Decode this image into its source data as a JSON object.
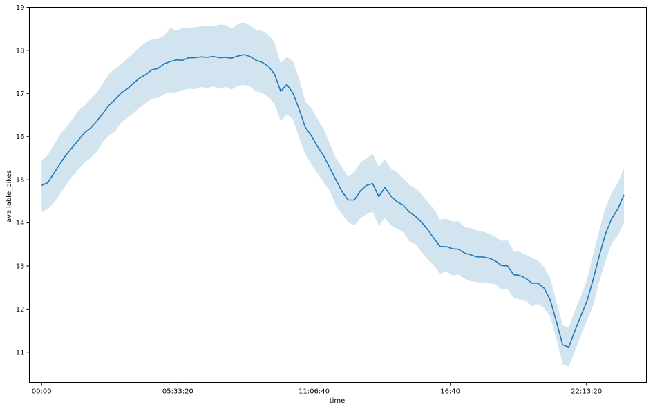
{
  "chart_data": {
    "type": "line",
    "xlabel": "time",
    "ylabel": "available_bikes",
    "xlim": [
      "-00:30",
      "24:40"
    ],
    "ylim": [
      10.3,
      19.0
    ],
    "x_ticks": [
      {
        "value": "00:00",
        "label": "00:00"
      },
      {
        "value": "05:33:20",
        "label": "05:33:20"
      },
      {
        "value": "11:06:40",
        "label": "11:06:40"
      },
      {
        "value": "16:40",
        "label": "16:40"
      },
      {
        "value": "22:13:20",
        "label": "22:13:20"
      }
    ],
    "y_ticks": [
      11,
      12,
      13,
      14,
      15,
      16,
      17,
      18,
      19
    ],
    "grid": false,
    "line_color": "#1f77b4",
    "band_color": "#1f77b4",
    "series": [
      {
        "x": [
          "00:00",
          "00:15",
          "00:30",
          "00:45",
          "01:00",
          "01:15",
          "01:30",
          "01:45",
          "02:00",
          "02:15",
          "02:30",
          "02:45",
          "03:00",
          "03:15",
          "03:30",
          "03:45",
          "04:00",
          "04:15",
          "04:30",
          "04:45",
          "05:00",
          "05:15",
          "05:30",
          "05:45",
          "06:00",
          "06:15",
          "06:30",
          "06:45",
          "07:00",
          "07:15",
          "07:30",
          "07:45",
          "08:00",
          "08:15",
          "08:30",
          "08:45",
          "09:00",
          "09:15",
          "09:30",
          "09:45",
          "10:00",
          "10:15",
          "10:30",
          "10:45",
          "11:00",
          "11:15",
          "11:30",
          "11:45",
          "12:00",
          "12:15",
          "12:30",
          "12:45",
          "13:00",
          "13:15",
          "13:30",
          "13:45",
          "14:00",
          "14:15",
          "14:30",
          "14:45",
          "15:00",
          "15:15",
          "15:30",
          "15:45",
          "16:00",
          "16:15",
          "16:30",
          "16:45",
          "17:00",
          "17:15",
          "17:30",
          "17:45",
          "18:00",
          "18:15",
          "18:30",
          "18:45",
          "19:00",
          "19:15",
          "19:30",
          "19:45",
          "20:00",
          "20:15",
          "20:30",
          "20:45",
          "21:00",
          "21:15",
          "21:30",
          "21:45",
          "22:00",
          "22:15",
          "22:30",
          "22:45",
          "23:00",
          "23:15",
          "23:30",
          "23:45"
        ],
        "y": [
          14.87,
          14.93,
          15.15,
          15.37,
          15.58,
          15.75,
          15.92,
          16.09,
          16.2,
          16.36,
          16.54,
          16.73,
          16.86,
          17.02,
          17.11,
          17.24,
          17.36,
          17.44,
          17.55,
          17.58,
          17.69,
          17.74,
          17.78,
          17.77,
          17.83,
          17.83,
          17.85,
          17.84,
          17.86,
          17.83,
          17.84,
          17.82,
          17.87,
          17.9,
          17.86,
          17.77,
          17.72,
          17.63,
          17.45,
          17.05,
          17.21,
          17.01,
          16.64,
          16.22,
          16.02,
          15.77,
          15.56,
          15.28,
          15.0,
          14.73,
          14.53,
          14.53,
          14.74,
          14.87,
          14.91,
          14.61,
          14.82,
          14.62,
          14.49,
          14.41,
          14.25,
          14.15,
          14.01,
          13.84,
          13.64,
          13.45,
          13.45,
          13.4,
          13.39,
          13.3,
          13.26,
          13.21,
          13.21,
          13.18,
          13.12,
          13.01,
          13.0,
          12.8,
          12.78,
          12.71,
          12.6,
          12.6,
          12.48,
          12.2,
          11.7,
          11.17,
          11.12,
          11.5,
          11.85,
          12.2,
          12.7,
          13.25,
          13.75,
          14.1,
          14.32,
          14.65
        ],
        "lower": [
          14.25,
          14.32,
          14.47,
          14.67,
          14.88,
          15.07,
          15.24,
          15.4,
          15.51,
          15.65,
          15.88,
          16.03,
          16.12,
          16.33,
          16.43,
          16.55,
          16.67,
          16.78,
          16.88,
          16.9,
          16.99,
          17.02,
          17.03,
          17.08,
          17.11,
          17.1,
          17.15,
          17.13,
          17.16,
          17.11,
          17.15,
          17.09,
          17.18,
          17.2,
          17.16,
          17.05,
          17.01,
          16.92,
          16.75,
          16.36,
          16.52,
          16.4,
          15.98,
          15.6,
          15.35,
          15.15,
          14.94,
          14.75,
          14.4,
          14.2,
          14.02,
          13.94,
          14.11,
          14.2,
          14.26,
          13.93,
          14.12,
          13.94,
          13.86,
          13.78,
          13.56,
          13.5,
          13.32,
          13.15,
          13.01,
          12.82,
          12.88,
          12.78,
          12.8,
          12.7,
          12.65,
          12.62,
          12.62,
          12.6,
          12.58,
          12.45,
          12.46,
          12.26,
          12.22,
          12.2,
          12.06,
          12.12,
          12.02,
          11.82,
          11.3,
          10.72,
          10.66,
          11.02,
          11.4,
          11.75,
          12.1,
          12.65,
          13.12,
          13.52,
          13.71,
          14.0
        ],
        "upper": [
          15.45,
          15.58,
          15.8,
          16.05,
          16.22,
          16.4,
          16.6,
          16.72,
          16.87,
          17.02,
          17.24,
          17.46,
          17.58,
          17.68,
          17.82,
          17.94,
          18.08,
          18.18,
          18.26,
          18.27,
          18.35,
          18.52,
          18.46,
          18.52,
          18.53,
          18.54,
          18.56,
          18.56,
          18.56,
          18.6,
          18.59,
          18.51,
          18.61,
          18.63,
          18.58,
          18.48,
          18.45,
          18.37,
          18.18,
          17.7,
          17.85,
          17.74,
          17.35,
          16.82,
          16.66,
          16.41,
          16.18,
          15.84,
          15.5,
          15.29,
          15.07,
          15.18,
          15.4,
          15.5,
          15.6,
          15.3,
          15.47,
          15.26,
          15.17,
          15.03,
          14.88,
          14.8,
          14.66,
          14.48,
          14.32,
          14.08,
          14.1,
          14.03,
          14.04,
          13.9,
          13.88,
          13.82,
          13.8,
          13.75,
          13.68,
          13.58,
          13.6,
          13.35,
          13.33,
          13.26,
          13.19,
          13.12,
          12.97,
          12.7,
          12.16,
          11.63,
          11.57,
          11.97,
          12.3,
          12.7,
          13.29,
          13.85,
          14.35,
          14.7,
          14.93,
          15.27
        ]
      }
    ]
  }
}
